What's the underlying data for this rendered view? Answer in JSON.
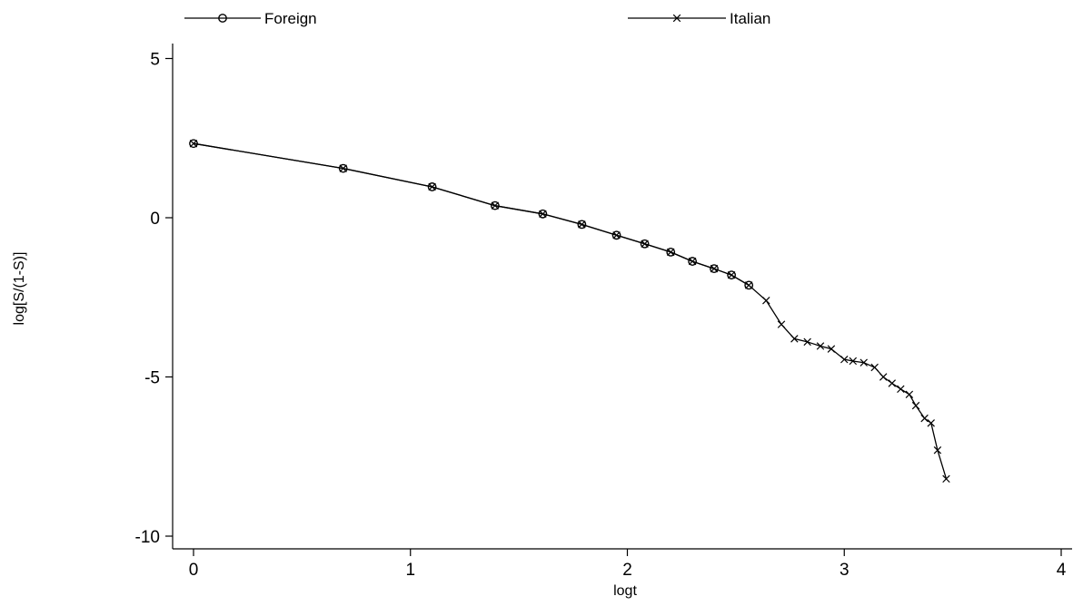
{
  "chart_data": {
    "type": "line",
    "title": "",
    "xlabel": "logt",
    "ylabel": "log[S/(1-S)]",
    "xlim": [
      -0.1,
      4.1
    ],
    "ylim": [
      -10.5,
      5.5
    ],
    "x_ticks": [
      0,
      1,
      2,
      3,
      4
    ],
    "x_tick_labels": [
      "0",
      "1",
      "2",
      "3",
      "4"
    ],
    "y_ticks": [
      5,
      0,
      -5,
      -10
    ],
    "y_tick_labels": [
      "5",
      "0",
      "-5",
      "-10"
    ],
    "grid": false,
    "legend_position": "top",
    "series": [
      {
        "name": "Foreign",
        "marker": "circle",
        "color": "#000000",
        "x": [
          0.0,
          0.69,
          1.1,
          1.39,
          1.61,
          1.79,
          1.95,
          2.08,
          2.2,
          2.3,
          2.4,
          2.48,
          2.56
        ],
        "y": [
          2.33,
          1.55,
          0.97,
          0.38,
          0.12,
          -0.21,
          -0.55,
          -0.82,
          -1.08,
          -1.37,
          -1.6,
          -1.8,
          -2.12
        ]
      },
      {
        "name": "Italian",
        "marker": "x",
        "color": "#000000",
        "x": [
          0.0,
          0.69,
          1.1,
          1.39,
          1.61,
          1.79,
          1.95,
          2.08,
          2.2,
          2.3,
          2.4,
          2.48,
          2.56,
          2.64,
          2.71,
          2.77,
          2.83,
          2.89,
          2.94,
          3.0,
          3.04,
          3.09,
          3.14,
          3.18,
          3.22,
          3.26,
          3.3,
          3.33,
          3.37,
          3.4,
          3.43,
          3.47
        ],
        "y": [
          2.33,
          1.55,
          0.97,
          0.38,
          0.12,
          -0.21,
          -0.55,
          -0.82,
          -1.08,
          -1.37,
          -1.6,
          -1.8,
          -2.12,
          -2.6,
          -3.35,
          -3.8,
          -3.9,
          -4.03,
          -4.12,
          -4.45,
          -4.5,
          -4.55,
          -4.7,
          -5.0,
          -5.2,
          -5.38,
          -5.55,
          -5.9,
          -6.3,
          -6.45,
          -7.3,
          -8.2
        ]
      }
    ]
  }
}
